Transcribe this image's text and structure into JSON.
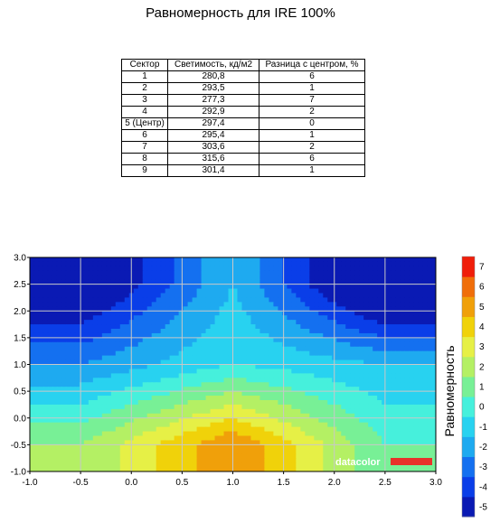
{
  "title": "Равномерность для IRE 100%",
  "table": {
    "headers": [
      "Сектор",
      "Светимость, кд/м2",
      "Разница с центром, %"
    ],
    "rows": [
      [
        "1",
        "280,8",
        "6"
      ],
      [
        "2",
        "293,5",
        "1"
      ],
      [
        "3",
        "277,3",
        "7"
      ],
      [
        "4",
        "292,9",
        "2"
      ],
      [
        "5 (Центр)",
        "297,4",
        "0"
      ],
      [
        "6",
        "295,4",
        "1"
      ],
      [
        "7",
        "303,6",
        "2"
      ],
      [
        "8",
        "315,6",
        "6"
      ],
      [
        "9",
        "301,4",
        "1"
      ]
    ]
  },
  "chart_data": {
    "type": "heatmap",
    "title": "",
    "xlabel": "",
    "ylabel": "",
    "xlim": [
      -1.0,
      3.0
    ],
    "ylim": [
      -1.0,
      3.0
    ],
    "x_ticks": [
      "-1.0",
      "-0.5",
      "0.0",
      "0.5",
      "1.0",
      "1.5",
      "2.0",
      "2.5",
      "3.0"
    ],
    "y_ticks": [
      "3.0",
      "2.5",
      "2.0",
      "1.5",
      "1.0",
      "0.5",
      "0.0",
      "-0.5",
      "-1.0"
    ],
    "grid": true,
    "colorbar": {
      "label": "Равномерность",
      "ticks": [
        "7",
        "6",
        "5",
        "4",
        "3",
        "2",
        "1",
        "0",
        "-1",
        "-2",
        "-3",
        "-4",
        "-5"
      ],
      "range": [
        -5,
        7
      ],
      "colors": [
        "#0a1ab4",
        "#0a3ee8",
        "#1470f0",
        "#1eaaf0",
        "#28d2f0",
        "#46f0dc",
        "#78f096",
        "#b4f064",
        "#e6f046",
        "#f0d20a",
        "#f0a00a",
        "#f06e0a",
        "#f01e0a"
      ]
    },
    "sectors": [
      {
        "x": -0.5,
        "y": 2.5,
        "value": -6
      },
      {
        "x": 1.0,
        "y": 2.5,
        "value": -1
      },
      {
        "x": 2.5,
        "y": 2.5,
        "value": -7
      },
      {
        "x": -0.5,
        "y": 1.0,
        "value": -2
      },
      {
        "x": 1.0,
        "y": 1.0,
        "value": 0
      },
      {
        "x": 2.5,
        "y": 1.0,
        "value": -1
      },
      {
        "x": -0.5,
        "y": -0.5,
        "value": 2
      },
      {
        "x": 1.0,
        "y": -0.5,
        "value": 6
      },
      {
        "x": 2.5,
        "y": -0.5,
        "value": 1
      }
    ]
  },
  "watermark": {
    "text": "datacolor",
    "bar_color": "#e8322a"
  }
}
